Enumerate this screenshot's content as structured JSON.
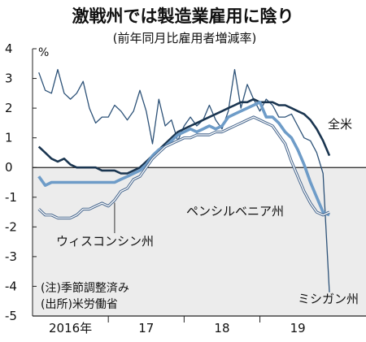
{
  "chart_data": {
    "type": "line",
    "title": "激戦州では製造業雇用に陰り",
    "subtitle": "(前年同月比雇用者増減率)",
    "ylabel": "%",
    "ylim": [
      -5,
      4
    ],
    "yticks": [
      "4",
      "3",
      "2",
      "1",
      "0",
      "-1",
      "-2",
      "-3",
      "-4",
      "-5"
    ],
    "xlim": [
      2015.5,
      2019.9
    ],
    "xticks": [
      {
        "label": "2016年",
        "x": 2016
      },
      {
        "label": "17",
        "x": 2017
      },
      {
        "label": "18",
        "x": 2018
      },
      {
        "label": "19",
        "x": 2019
      }
    ],
    "shade_below": 0,
    "grid": false,
    "notes": [
      "(注)季節調整済み",
      "(出所)米労働省"
    ],
    "series": [
      {
        "name": "ミシガン州",
        "color": "#2d5278",
        "width": 1.3,
        "x": [
          2015.583,
          2015.667,
          2015.75,
          2015.833,
          2015.917,
          2016.0,
          2016.083,
          2016.167,
          2016.25,
          2016.333,
          2016.417,
          2016.5,
          2016.583,
          2016.667,
          2016.75,
          2016.833,
          2016.917,
          2017.0,
          2017.083,
          2017.167,
          2017.25,
          2017.333,
          2017.417,
          2017.5,
          2017.583,
          2017.667,
          2017.75,
          2017.833,
          2017.917,
          2018.0,
          2018.083,
          2018.167,
          2018.25,
          2018.333,
          2018.417,
          2018.5,
          2018.583,
          2018.667,
          2018.75,
          2018.833,
          2018.917,
          2019.0,
          2019.083,
          2019.167,
          2019.25,
          2019.333,
          2019.417
        ],
        "values": [
          3.2,
          2.6,
          2.5,
          3.3,
          2.5,
          2.3,
          2.5,
          2.9,
          2.0,
          1.5,
          1.7,
          1.7,
          2.1,
          1.9,
          1.6,
          1.9,
          2.6,
          1.9,
          0.8,
          2.3,
          1.4,
          1.6,
          0.9,
          1.4,
          1.7,
          1.4,
          1.6,
          2.1,
          1.6,
          1.3,
          1.9,
          3.3,
          2.0,
          2.8,
          2.3,
          1.9,
          2.3,
          2.1,
          1.7,
          1.7,
          1.8,
          1.4,
          1.0,
          0.9,
          0.5,
          -0.2,
          -4.2
        ]
      },
      {
        "name": "全米",
        "color": "#1a3550",
        "width": 2.6,
        "x": [
          2015.583,
          2015.667,
          2015.75,
          2015.833,
          2015.917,
          2016.0,
          2016.083,
          2016.167,
          2016.25,
          2016.333,
          2016.417,
          2016.5,
          2016.583,
          2016.667,
          2016.75,
          2016.833,
          2016.917,
          2017.0,
          2017.083,
          2017.167,
          2017.25,
          2017.333,
          2017.417,
          2017.5,
          2017.583,
          2017.667,
          2017.75,
          2017.833,
          2017.917,
          2018.0,
          2018.083,
          2018.167,
          2018.25,
          2018.333,
          2018.417,
          2018.5,
          2018.583,
          2018.667,
          2018.75,
          2018.833,
          2018.917,
          2019.0,
          2019.083,
          2019.167,
          2019.25,
          2019.333,
          2019.417
        ],
        "values": [
          0.7,
          0.5,
          0.3,
          0.2,
          0.3,
          0.1,
          0.0,
          0.0,
          0.0,
          0.0,
          -0.1,
          -0.1,
          -0.1,
          -0.2,
          -0.2,
          -0.1,
          0.0,
          0.2,
          0.4,
          0.6,
          0.8,
          1.0,
          1.2,
          1.3,
          1.4,
          1.5,
          1.6,
          1.7,
          1.8,
          1.9,
          2.0,
          2.1,
          2.2,
          2.2,
          2.3,
          2.2,
          2.2,
          2.2,
          2.1,
          2.1,
          2.0,
          1.9,
          1.8,
          1.6,
          1.3,
          0.9,
          0.4
        ]
      },
      {
        "name": "ペンシルベニア州",
        "color": "#6e9cc8",
        "width": 3.6,
        "x": [
          2015.583,
          2015.667,
          2015.75,
          2015.833,
          2015.917,
          2016.0,
          2016.083,
          2016.167,
          2016.25,
          2016.333,
          2016.417,
          2016.5,
          2016.583,
          2016.667,
          2016.75,
          2016.833,
          2016.917,
          2017.0,
          2017.083,
          2017.167,
          2017.25,
          2017.333,
          2017.417,
          2017.5,
          2017.583,
          2017.667,
          2017.75,
          2017.833,
          2017.917,
          2018.0,
          2018.083,
          2018.167,
          2018.25,
          2018.333,
          2018.417,
          2018.5,
          2018.583,
          2018.667,
          2018.75,
          2018.833,
          2018.917,
          2019.0,
          2019.083,
          2019.167,
          2019.25,
          2019.333,
          2019.417
        ],
        "values": [
          -0.3,
          -0.6,
          -0.5,
          -0.5,
          -0.5,
          -0.5,
          -0.5,
          -0.5,
          -0.5,
          -0.5,
          -0.5,
          -0.5,
          -0.5,
          -0.4,
          -0.3,
          -0.2,
          -0.1,
          0.1,
          0.4,
          0.6,
          0.7,
          0.9,
          1.1,
          1.2,
          1.3,
          1.2,
          1.3,
          1.4,
          1.3,
          1.4,
          1.7,
          1.8,
          1.9,
          2.0,
          2.1,
          2.2,
          1.7,
          1.7,
          1.5,
          1.2,
          1.0,
          0.6,
          0.1,
          -0.5,
          -1.0,
          -1.5,
          -1.6
        ]
      },
      {
        "name": "ウィスコンシン州",
        "color": "#4b6a90",
        "width": 1.1,
        "double": true,
        "x": [
          2015.583,
          2015.667,
          2015.75,
          2015.833,
          2015.917,
          2016.0,
          2016.083,
          2016.167,
          2016.25,
          2016.333,
          2016.417,
          2016.5,
          2016.583,
          2016.667,
          2016.75,
          2016.833,
          2016.917,
          2017.0,
          2017.083,
          2017.167,
          2017.25,
          2017.333,
          2017.417,
          2017.5,
          2017.583,
          2017.667,
          2017.75,
          2017.833,
          2017.917,
          2018.0,
          2018.083,
          2018.167,
          2018.25,
          2018.333,
          2018.417,
          2018.5,
          2018.583,
          2018.667,
          2018.75,
          2018.833,
          2018.917,
          2019.0,
          2019.083,
          2019.167,
          2019.25,
          2019.333,
          2019.417
        ],
        "values": [
          -1.4,
          -1.6,
          -1.6,
          -1.7,
          -1.7,
          -1.7,
          -1.6,
          -1.4,
          -1.4,
          -1.3,
          -1.2,
          -1.3,
          -1.1,
          -0.8,
          -0.7,
          -0.4,
          -0.3,
          0.0,
          0.3,
          0.5,
          0.7,
          0.8,
          0.9,
          1.0,
          1.0,
          1.1,
          1.1,
          1.1,
          1.2,
          1.2,
          1.3,
          1.4,
          1.5,
          1.6,
          1.7,
          1.6,
          1.5,
          1.4,
          1.1,
          0.8,
          0.2,
          -0.3,
          -0.8,
          -1.2,
          -1.5,
          -1.6,
          -1.5
        ]
      }
    ],
    "annotations": [
      {
        "text": "全米",
        "series": "全米"
      },
      {
        "text": "ペンシルベニア州",
        "series": "ペンシルベニア州"
      },
      {
        "text": "ウィスコンシン州",
        "series": "ウィスコンシン州"
      },
      {
        "text": "ミシガン州",
        "series": "ミシガン州"
      }
    ]
  }
}
